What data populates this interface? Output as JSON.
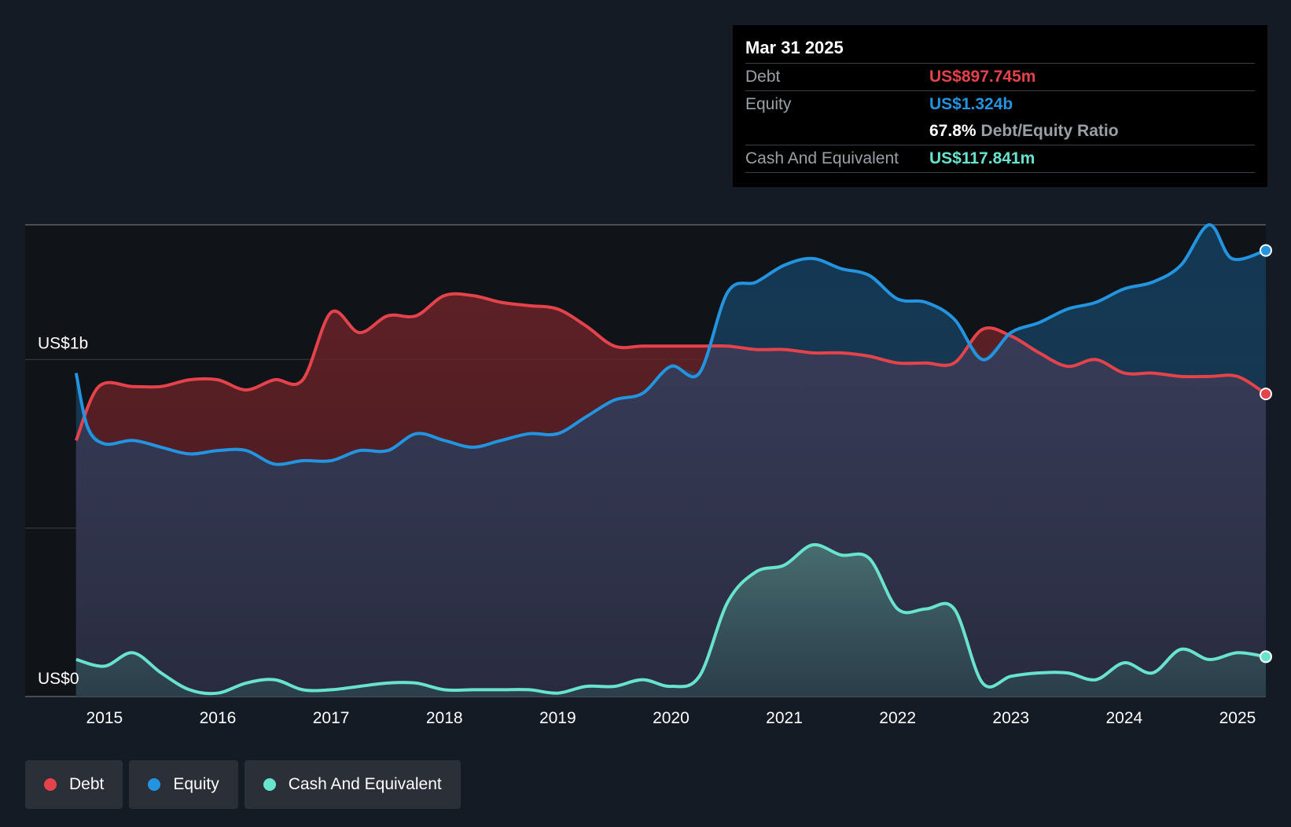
{
  "chart_data": {
    "type": "area",
    "title": "",
    "y_axis": {
      "top_label": "US$1b",
      "bottom_label": "US$0",
      "ylim": [
        0,
        1.4
      ],
      "unit": "US$b"
    },
    "x_ticks": [
      "2015",
      "2016",
      "2017",
      "2018",
      "2019",
      "2020",
      "2021",
      "2022",
      "2023",
      "2024",
      "2025"
    ],
    "x_tick_values": [
      2015,
      2016,
      2017,
      2018,
      2019,
      2020,
      2021,
      2022,
      2023,
      2024,
      2025
    ],
    "xlim": [
      2014.3,
      2025.25
    ],
    "series": [
      {
        "name": "Equity",
        "color": "#2394df",
        "x": [
          2014.75,
          2014.85,
          2015.0,
          2015.25,
          2015.5,
          2015.75,
          2016.0,
          2016.25,
          2016.5,
          2016.75,
          2017.0,
          2017.25,
          2017.5,
          2017.75,
          2018.0,
          2018.25,
          2018.5,
          2018.75,
          2019.0,
          2019.25,
          2019.5,
          2019.75,
          2020.0,
          2020.25,
          2020.5,
          2020.75,
          2021.0,
          2021.25,
          2021.5,
          2021.75,
          2022.0,
          2022.25,
          2022.5,
          2022.75,
          2023.0,
          2023.25,
          2023.5,
          2023.75,
          2024.0,
          2024.25,
          2024.5,
          2024.75,
          2024.95,
          2025.25
        ],
        "values": [
          0.96,
          0.8,
          0.75,
          0.76,
          0.74,
          0.72,
          0.73,
          0.73,
          0.69,
          0.7,
          0.7,
          0.73,
          0.73,
          0.78,
          0.76,
          0.74,
          0.76,
          0.78,
          0.78,
          0.83,
          0.88,
          0.9,
          0.98,
          0.96,
          1.2,
          1.23,
          1.28,
          1.3,
          1.27,
          1.25,
          1.18,
          1.17,
          1.12,
          1.0,
          1.08,
          1.11,
          1.15,
          1.17,
          1.21,
          1.23,
          1.28,
          1.4,
          1.3,
          1.324
        ]
      },
      {
        "name": "Debt",
        "color": "#e5434b",
        "x": [
          2014.75,
          2014.95,
          2015.25,
          2015.5,
          2015.75,
          2016.0,
          2016.25,
          2016.5,
          2016.75,
          2017.0,
          2017.25,
          2017.5,
          2017.75,
          2018.0,
          2018.25,
          2018.5,
          2018.75,
          2019.0,
          2019.25,
          2019.5,
          2019.75,
          2020.0,
          2020.25,
          2020.5,
          2020.75,
          2021.0,
          2021.25,
          2021.5,
          2021.75,
          2022.0,
          2022.25,
          2022.5,
          2022.75,
          2023.0,
          2023.25,
          2023.5,
          2023.75,
          2024.0,
          2024.25,
          2024.5,
          2024.75,
          2025.0,
          2025.25
        ],
        "values": [
          0.76,
          0.92,
          0.92,
          0.92,
          0.94,
          0.94,
          0.91,
          0.94,
          0.94,
          1.14,
          1.08,
          1.13,
          1.13,
          1.19,
          1.19,
          1.17,
          1.16,
          1.15,
          1.1,
          1.04,
          1.04,
          1.04,
          1.04,
          1.04,
          1.03,
          1.03,
          1.02,
          1.02,
          1.01,
          0.99,
          0.99,
          0.99,
          1.09,
          1.07,
          1.02,
          0.98,
          1.0,
          0.96,
          0.96,
          0.95,
          0.95,
          0.95,
          0.898
        ]
      },
      {
        "name": "Cash And Equivalent",
        "color": "#68e3cd",
        "x": [
          2014.75,
          2015.0,
          2015.25,
          2015.5,
          2015.75,
          2016.0,
          2016.25,
          2016.5,
          2016.75,
          2017.0,
          2017.25,
          2017.5,
          2017.75,
          2018.0,
          2018.25,
          2018.5,
          2018.75,
          2019.0,
          2019.25,
          2019.5,
          2019.75,
          2020.0,
          2020.25,
          2020.5,
          2020.75,
          2021.0,
          2021.25,
          2021.5,
          2021.75,
          2022.0,
          2022.25,
          2022.5,
          2022.75,
          2023.0,
          2023.25,
          2023.5,
          2023.75,
          2024.0,
          2024.25,
          2024.5,
          2024.75,
          2025.0,
          2025.25
        ],
        "values": [
          0.11,
          0.09,
          0.13,
          0.07,
          0.02,
          0.01,
          0.04,
          0.05,
          0.02,
          0.02,
          0.03,
          0.04,
          0.04,
          0.02,
          0.02,
          0.02,
          0.02,
          0.01,
          0.03,
          0.03,
          0.05,
          0.03,
          0.06,
          0.28,
          0.37,
          0.39,
          0.45,
          0.42,
          0.41,
          0.26,
          0.26,
          0.26,
          0.04,
          0.06,
          0.07,
          0.07,
          0.05,
          0.1,
          0.07,
          0.14,
          0.11,
          0.13,
          0.118
        ]
      }
    ]
  },
  "tooltip": {
    "date": "Mar 31 2025",
    "debt_label": "Debt",
    "debt_value": "US$897.745m",
    "equity_label": "Equity",
    "equity_value": "US$1.324b",
    "ratio_value": "67.8%",
    "ratio_label": "Debt/Equity Ratio",
    "cash_label": "Cash And Equivalent",
    "cash_value": "US$117.841m"
  },
  "legend": [
    {
      "label": "Debt",
      "color": "#e5434b"
    },
    {
      "label": "Equity",
      "color": "#2394df"
    },
    {
      "label": "Cash And Equivalent",
      "color": "#68e3cd"
    }
  ],
  "colors": {
    "background": "#151b24",
    "tooltip_bg": "#000000"
  }
}
